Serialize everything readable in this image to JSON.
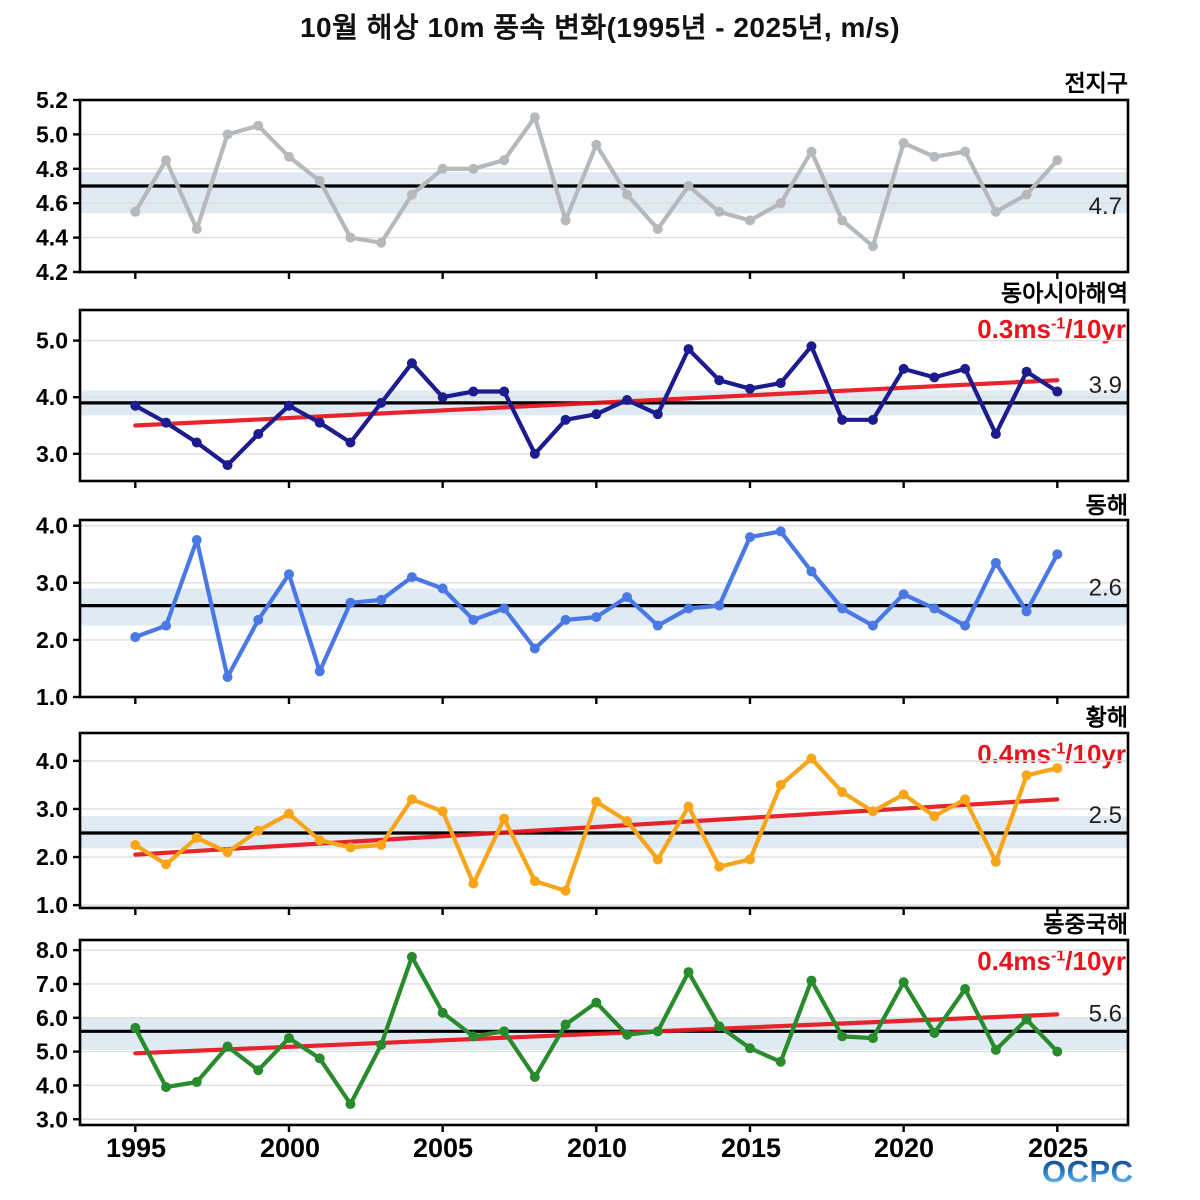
{
  "title": "10월 해상 10m 풍속 변화(1995년 - 2025년, m/s)",
  "logo": "OCPC",
  "x_tick_labels": [
    "1995",
    "2000",
    "2005",
    "2010",
    "2015",
    "2020",
    "2025"
  ],
  "years": [
    1995,
    1996,
    1997,
    1998,
    1999,
    2000,
    2001,
    2002,
    2003,
    2004,
    2005,
    2006,
    2007,
    2008,
    2009,
    2010,
    2011,
    2012,
    2013,
    2014,
    2015,
    2016,
    2017,
    2018,
    2019,
    2020,
    2021,
    2022,
    2023,
    2024,
    2025
  ],
  "chart_data": [
    {
      "type": "line",
      "region": "전지구",
      "values": [
        4.55,
        4.85,
        4.45,
        5.0,
        5.05,
        4.87,
        4.73,
        4.4,
        4.37,
        4.65,
        4.8,
        4.8,
        4.85,
        5.1,
        4.5,
        4.94,
        4.65,
        4.45,
        4.7,
        4.55,
        4.5,
        4.6,
        4.9,
        4.5,
        4.35,
        4.95,
        4.87,
        4.9,
        4.55,
        4.65,
        4.85
      ],
      "mean": 4.7,
      "mean_label": "4.7",
      "band": [
        4.54,
        4.78
      ],
      "line_color": "#b6b9bc",
      "yticks": [
        5.2,
        5.0,
        4.8,
        4.6,
        4.4,
        4.2
      ],
      "ylim": [
        4.2,
        5.2
      ],
      "trend": null,
      "trend_label": null
    },
    {
      "type": "line",
      "region": "동아시아해역",
      "values": [
        3.85,
        3.55,
        3.2,
        2.8,
        3.35,
        3.85,
        3.55,
        3.2,
        3.9,
        4.6,
        4.0,
        4.1,
        4.1,
        3.0,
        3.6,
        3.7,
        3.95,
        3.7,
        4.85,
        4.3,
        4.15,
        4.25,
        4.9,
        3.6,
        3.6,
        4.5,
        4.35,
        4.5,
        3.35,
        4.45,
        4.1
      ],
      "mean": 3.9,
      "mean_label": "3.9",
      "band": [
        3.68,
        4.12
      ],
      "line_color": "#1c1c8e",
      "yticks": [
        5.0,
        4.0,
        3.0
      ],
      "ylim": [
        2.52,
        5.54
      ],
      "trend": {
        "start_year": 1995,
        "end_year": 2025,
        "start": 3.5,
        "end": 4.3,
        "rate_per_10yr": 0.3
      },
      "trend_label": {
        "base": "0.3ms",
        "sup": "-1",
        "rest": "/10yr"
      }
    },
    {
      "type": "line",
      "region": "동해",
      "values": [
        2.05,
        2.25,
        3.75,
        1.35,
        2.35,
        3.15,
        1.45,
        2.65,
        2.7,
        3.1,
        2.9,
        2.35,
        2.55,
        1.85,
        2.35,
        2.4,
        2.75,
        2.25,
        2.55,
        2.6,
        3.8,
        3.9,
        3.2,
        2.55,
        2.25,
        2.8,
        2.55,
        2.25,
        3.35,
        2.5,
        3.5
      ],
      "mean": 2.6,
      "mean_label": "2.6",
      "band": [
        2.25,
        2.9
      ],
      "line_color": "#4a79e6",
      "yticks": [
        4.0,
        3.0,
        2.0,
        1.0
      ],
      "ylim": [
        1.0,
        4.1
      ],
      "trend": null,
      "trend_label": null
    },
    {
      "type": "line",
      "region": "황해",
      "values": [
        2.25,
        1.85,
        2.4,
        2.1,
        2.55,
        2.9,
        2.35,
        2.2,
        2.25,
        3.2,
        2.95,
        1.45,
        2.8,
        1.5,
        1.3,
        3.15,
        2.75,
        1.95,
        3.05,
        1.8,
        1.95,
        3.5,
        4.05,
        3.35,
        2.95,
        3.3,
        2.85,
        3.2,
        1.9,
        3.7,
        3.85
      ],
      "mean": 2.5,
      "mean_label": "2.5",
      "band": [
        2.18,
        2.85
      ],
      "line_color": "#f9a51a",
      "yticks": [
        4.0,
        3.0,
        2.0,
        1.0
      ],
      "ylim": [
        0.94,
        4.58
      ],
      "trend": {
        "start_year": 1995,
        "end_year": 2025,
        "start": 2.05,
        "end": 3.2,
        "rate_per_10yr": 0.4
      },
      "trend_label": {
        "base": "0.4ms",
        "sup": "-1",
        "rest": "/10yr"
      }
    },
    {
      "type": "line",
      "region": "동중국해",
      "values": [
        5.7,
        3.95,
        4.1,
        5.15,
        4.45,
        5.4,
        4.8,
        3.45,
        5.2,
        7.8,
        6.15,
        5.45,
        5.6,
        4.25,
        5.8,
        6.45,
        5.5,
        5.6,
        7.35,
        5.75,
        5.1,
        4.7,
        7.1,
        5.45,
        5.4,
        7.05,
        5.55,
        6.85,
        5.05,
        5.95,
        5.0
      ],
      "mean": 5.6,
      "mean_label": "5.6",
      "band": [
        5.05,
        6.0
      ],
      "line_color": "#2a8b2d",
      "yticks": [
        8.0,
        7.0,
        6.0,
        5.0,
        4.0,
        3.0
      ],
      "ylim": [
        2.83,
        8.3
      ],
      "trend": {
        "start_year": 1995,
        "end_year": 2025,
        "start": 4.95,
        "end": 6.1,
        "rate_per_10yr": 0.4
      },
      "trend_label": {
        "base": "0.4ms",
        "sup": "-1",
        "rest": "/10yr"
      }
    }
  ],
  "colors": {
    "mean_line": "#000000",
    "trend_line": "#e8131b",
    "band_fill": "#d9e6f1",
    "grid_line": "#dedede"
  }
}
